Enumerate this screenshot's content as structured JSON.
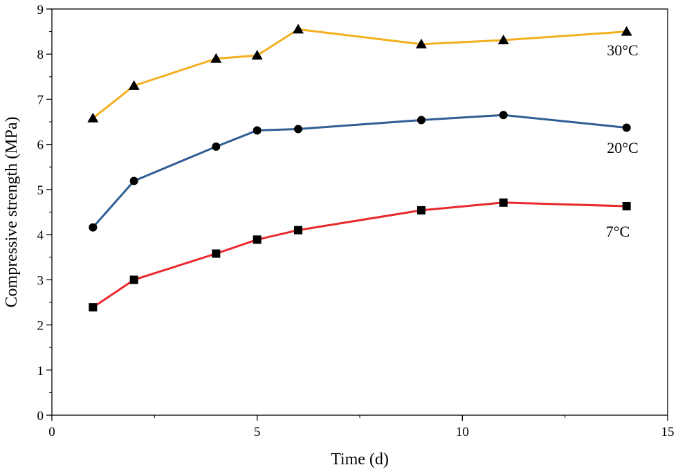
{
  "chart_data": {
    "type": "line",
    "title": "",
    "xlabel": "Time (d)",
    "ylabel": "Compressive strength (MPa)",
    "xlim": [
      0,
      15
    ],
    "ylim": [
      0,
      9
    ],
    "xticks": [
      0,
      5,
      10,
      15
    ],
    "yticks": [
      0,
      1,
      2,
      3,
      4,
      5,
      6,
      7,
      8,
      9
    ],
    "grid": false,
    "series": [
      {
        "name": "30°C",
        "color": "#F2B01E",
        "marker": "triangle",
        "x": [
          1,
          2,
          4,
          5,
          6,
          9,
          11,
          14
        ],
        "values": [
          6.58,
          7.3,
          7.9,
          7.97,
          8.55,
          8.22,
          8.31,
          8.5
        ]
      },
      {
        "name": "20°C",
        "color": "#2F5D94",
        "marker": "circle",
        "x": [
          1,
          2,
          4,
          5,
          6,
          9,
          11,
          14
        ],
        "values": [
          4.16,
          5.19,
          5.95,
          6.31,
          6.34,
          6.54,
          6.65,
          6.37
        ]
      },
      {
        "name": "7°C",
        "color": "#E8282C",
        "marker": "square",
        "x": [
          1,
          2,
          4,
          5,
          6,
          9,
          11,
          14
        ],
        "values": [
          2.39,
          3.0,
          3.58,
          3.89,
          4.1,
          4.54,
          4.71,
          4.63
        ]
      }
    ]
  }
}
